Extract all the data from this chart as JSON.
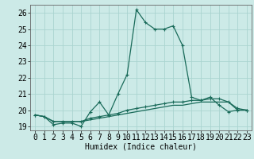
{
  "xlabel": "Humidex (Indice chaleur)",
  "xlim": [
    -0.5,
    23.5
  ],
  "ylim": [
    18.75,
    26.5
  ],
  "yticks": [
    19,
    20,
    21,
    22,
    23,
    24,
    25,
    26
  ],
  "xticks": [
    0,
    1,
    2,
    3,
    4,
    5,
    6,
    7,
    8,
    9,
    10,
    11,
    12,
    13,
    14,
    15,
    16,
    17,
    18,
    19,
    20,
    21,
    22,
    23
  ],
  "bg_color": "#cceae7",
  "grid_color": "#aad4d0",
  "line_color": "#1a6b5a",
  "series1_y": [
    19.7,
    19.6,
    19.1,
    19.2,
    19.2,
    19.0,
    19.9,
    20.5,
    19.7,
    21.0,
    22.2,
    26.2,
    25.4,
    25.0,
    25.0,
    25.2,
    24.0,
    20.8,
    20.6,
    20.8,
    20.3,
    19.9,
    20.0,
    20.0
  ],
  "series2_y": [
    19.7,
    19.6,
    19.3,
    19.3,
    19.3,
    19.3,
    19.4,
    19.5,
    19.6,
    19.7,
    19.8,
    19.9,
    20.0,
    20.1,
    20.2,
    20.3,
    20.3,
    20.4,
    20.5,
    20.5,
    20.5,
    20.5,
    20.0,
    20.0
  ],
  "series3_y": [
    19.7,
    19.6,
    19.3,
    19.3,
    19.3,
    19.3,
    19.5,
    19.6,
    19.7,
    19.8,
    20.0,
    20.1,
    20.2,
    20.3,
    20.4,
    20.5,
    20.5,
    20.6,
    20.6,
    20.7,
    20.7,
    20.5,
    20.1,
    20.0
  ],
  "tick_fontsize": 7,
  "xlabel_fontsize": 7
}
